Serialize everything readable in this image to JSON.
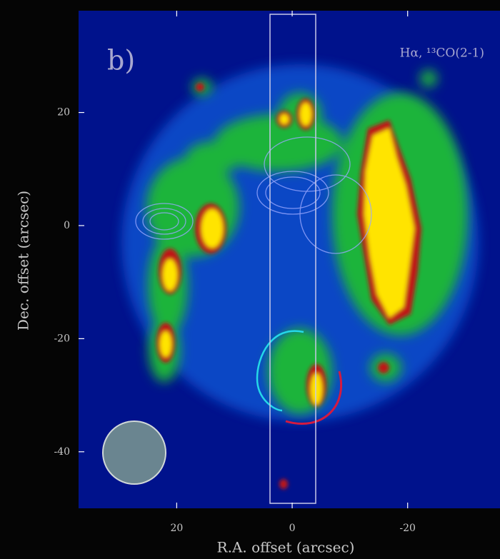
{
  "chart_data": {
    "type": "image",
    "panel_label": "b)",
    "annotation": "Hα, ¹³CO(2-1)",
    "xlabel": "R.A. offset (arcsec)",
    "ylabel": "Dec. offset (arcsec)",
    "xlim": [
      37,
      -36
    ],
    "xticks": [
      20,
      0,
      -20
    ],
    "ylim": [
      -50,
      38
    ],
    "yticks": [
      20,
      0,
      -20,
      -40
    ]
  }
}
